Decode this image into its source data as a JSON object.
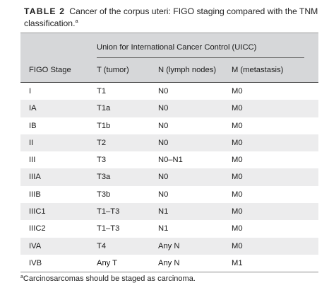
{
  "caption": {
    "table_number": "TABLE 2",
    "text": "Cancer of the corpus uteri: FIGO staging compared with the TNM classification.",
    "marker": "a"
  },
  "header": {
    "group_label": "Union for International Cancer Control (UICC)",
    "columns": [
      "FIGO Stage",
      "T (tumor)",
      "N (lymph nodes)",
      "M (metastasis)"
    ]
  },
  "rows": [
    [
      "I",
      "T1",
      "N0",
      "M0"
    ],
    [
      "IA",
      "T1a",
      "N0",
      "M0"
    ],
    [
      "IB",
      "T1b",
      "N0",
      "M0"
    ],
    [
      "II",
      "T2",
      "N0",
      "M0"
    ],
    [
      "III",
      "T3",
      "N0–N1",
      "M0"
    ],
    [
      "IIIA",
      "T3a",
      "N0",
      "M0"
    ],
    [
      "IIIB",
      "T3b",
      "N0",
      "M0"
    ],
    [
      "IIIC1",
      "T1–T3",
      "N1",
      "M0"
    ],
    [
      "IIIC2",
      "T1–T3",
      "N1",
      "M0"
    ],
    [
      "IVA",
      "T4",
      "Any N",
      "M0"
    ],
    [
      "IVB",
      "Any T",
      "Any N",
      "M1"
    ]
  ],
  "footnote": {
    "marker": "a",
    "text": "Carcinosarcomas should be staged as carcinoma."
  },
  "colors": {
    "header_bg": "#d6d7d9",
    "stripe_bg": "#ececed"
  }
}
